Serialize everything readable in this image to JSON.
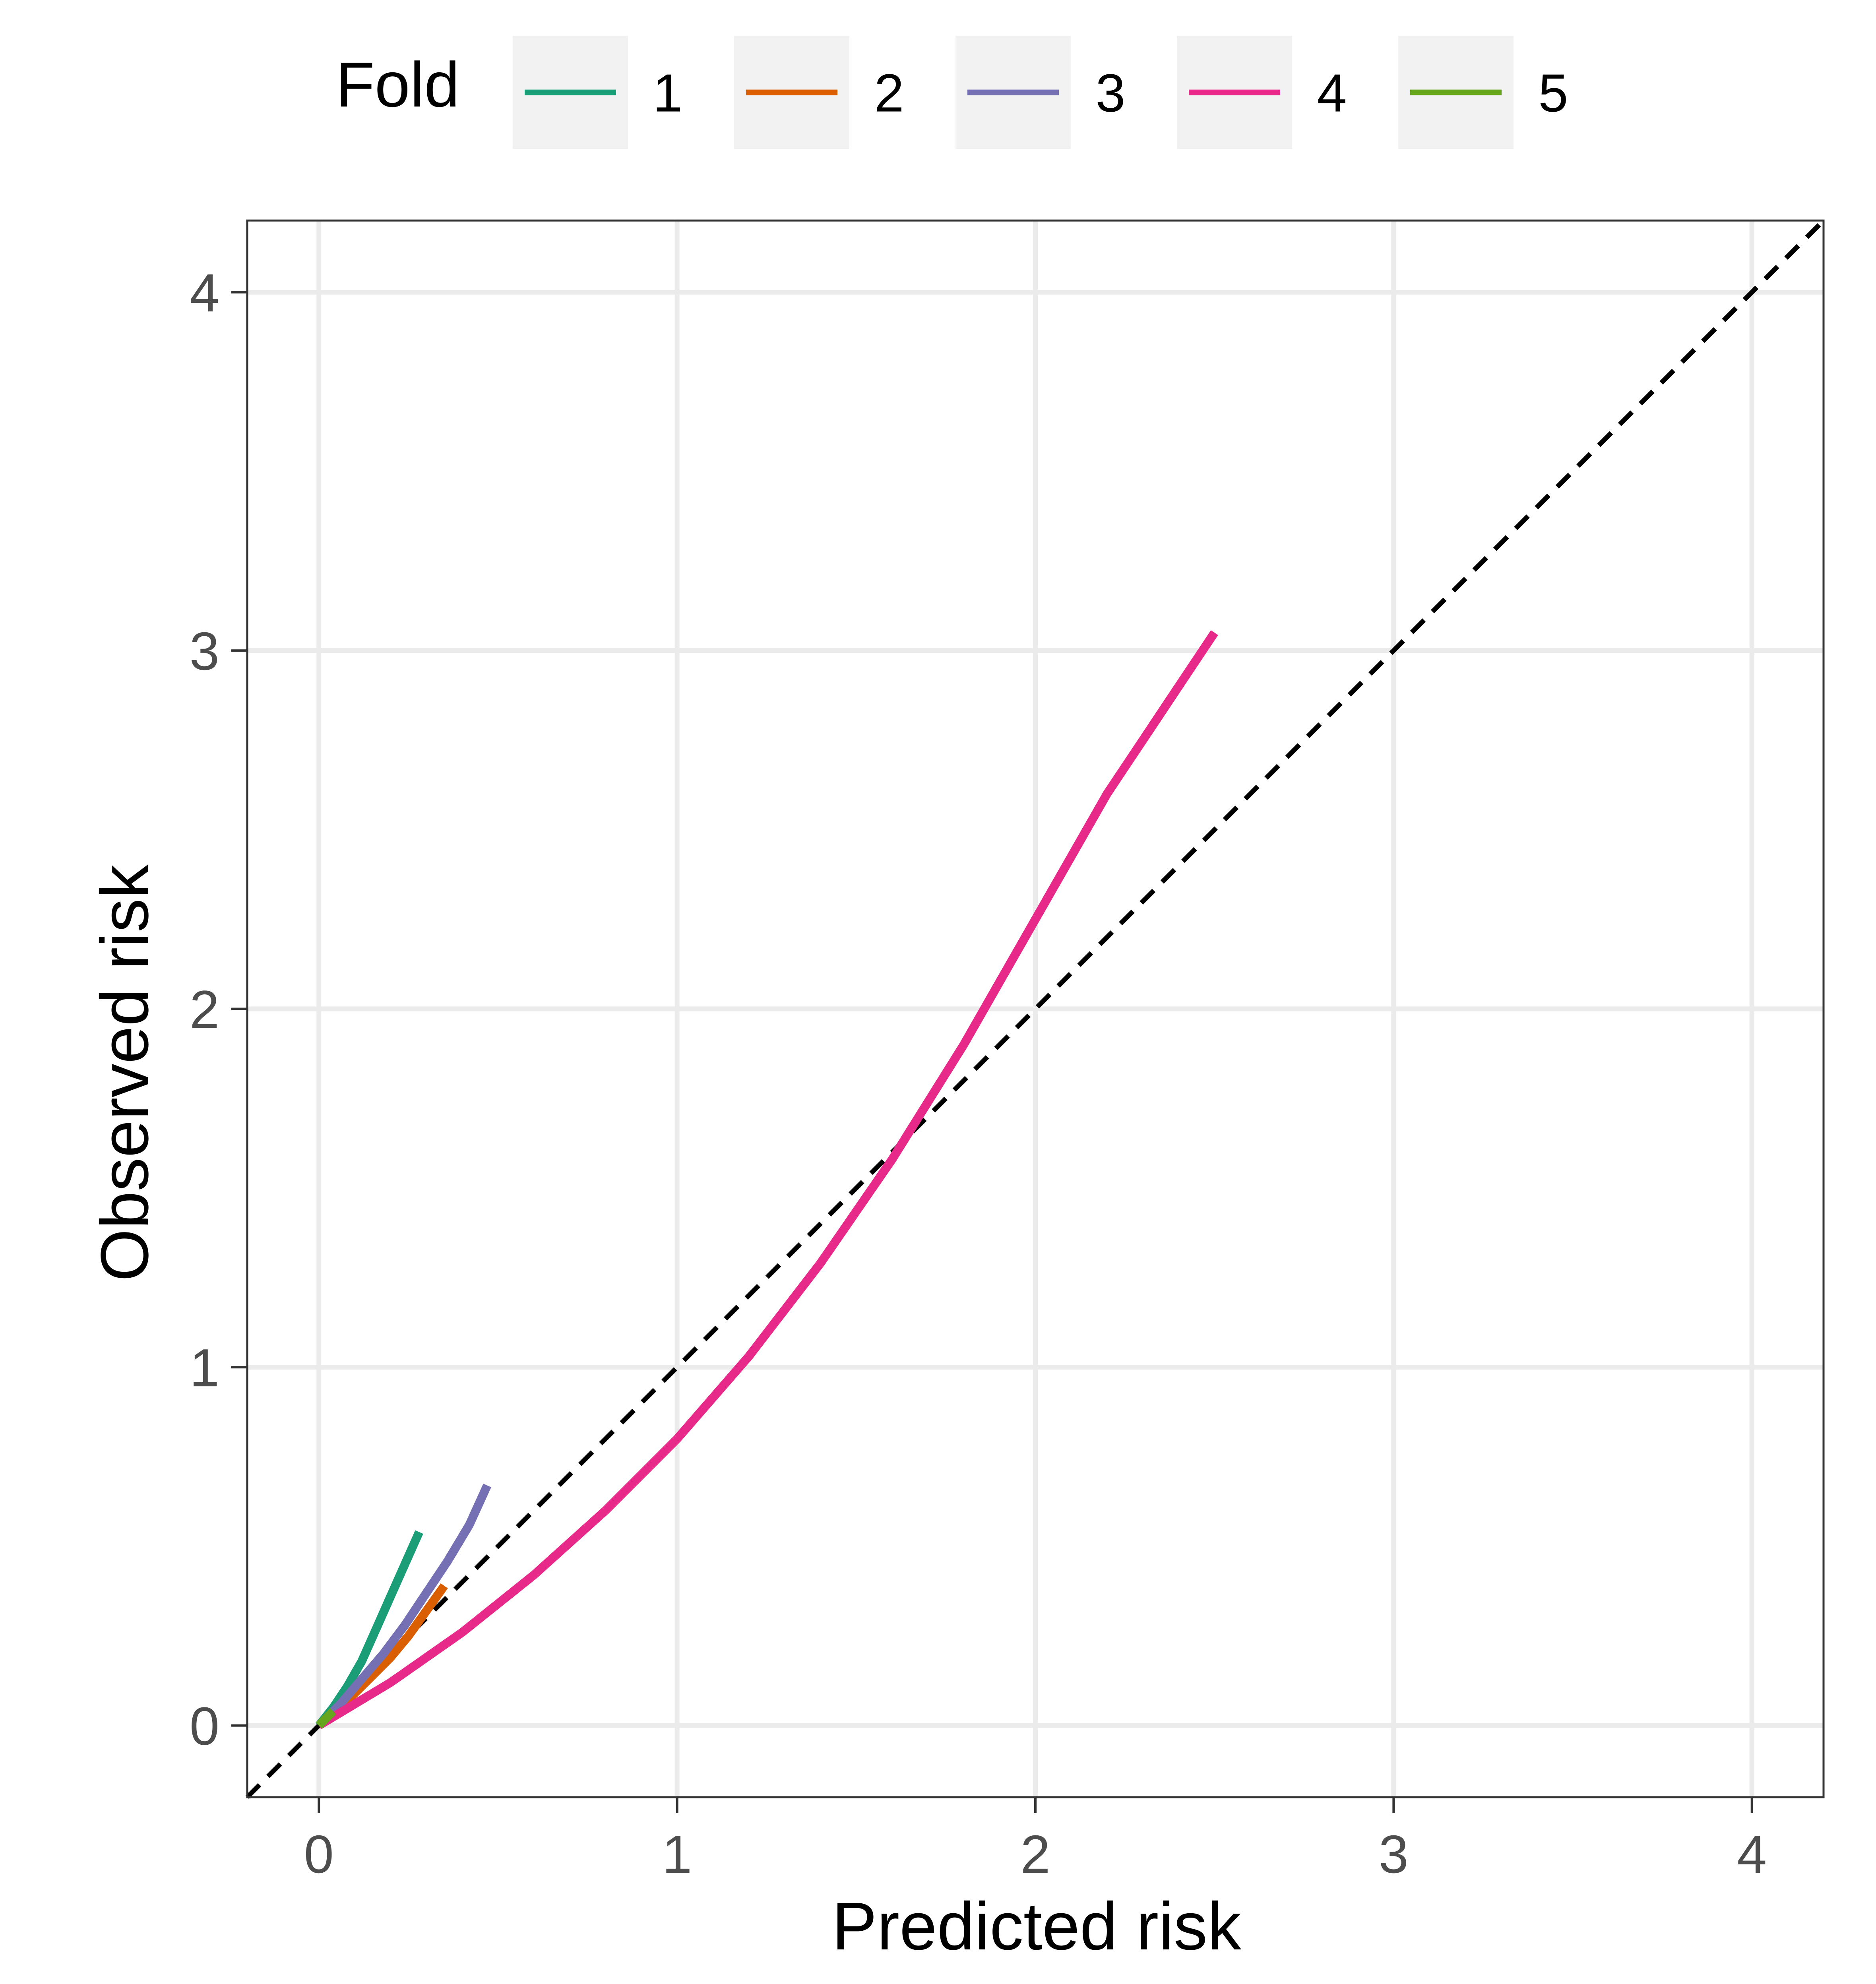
{
  "legend": {
    "title": "Fold",
    "position": "top",
    "entries": [
      {
        "label": "1",
        "color": "#1B9E77"
      },
      {
        "label": "2",
        "color": "#D95F02"
      },
      {
        "label": "3",
        "color": "#7570B3"
      },
      {
        "label": "4",
        "color": "#E7298A"
      },
      {
        "label": "5",
        "color": "#66A61E"
      }
    ]
  },
  "chart_data": {
    "type": "line",
    "title": "",
    "xlabel": "Predicted risk",
    "ylabel": "Observed risk",
    "xlim": [
      -0.2,
      4.2
    ],
    "ylim": [
      -0.2,
      4.2
    ],
    "x_ticks": [
      0,
      1,
      2,
      3,
      4
    ],
    "y_ticks": [
      0,
      1,
      2,
      3,
      4
    ],
    "x_tick_labels": [
      "0",
      "1",
      "2",
      "3",
      "4"
    ],
    "y_tick_labels": [
      "0",
      "1",
      "2",
      "3",
      "4"
    ],
    "grid": true,
    "reference_line": {
      "description": "identity y = x",
      "style": "dashed",
      "color": "#000000"
    },
    "series": [
      {
        "name": "1",
        "color": "#1B9E77",
        "x": [
          0,
          0.04,
          0.08,
          0.12,
          0.16,
          0.2,
          0.24,
          0.28
        ],
        "y": [
          0,
          0.05,
          0.11,
          0.18,
          0.27,
          0.36,
          0.45,
          0.54
        ]
      },
      {
        "name": "2",
        "color": "#D95F02",
        "x": [
          0,
          0.05,
          0.1,
          0.15,
          0.2,
          0.25,
          0.3,
          0.35
        ],
        "y": [
          0,
          0.04,
          0.09,
          0.14,
          0.19,
          0.25,
          0.32,
          0.39
        ]
      },
      {
        "name": "3",
        "color": "#7570B3",
        "x": [
          0,
          0.06,
          0.12,
          0.18,
          0.24,
          0.3,
          0.36,
          0.42,
          0.47
        ],
        "y": [
          0,
          0.06,
          0.13,
          0.2,
          0.28,
          0.37,
          0.46,
          0.56,
          0.67
        ]
      },
      {
        "name": "4",
        "color": "#E7298A",
        "x": [
          0,
          0.1,
          0.2,
          0.3,
          0.4,
          0.5,
          0.6,
          0.8,
          1.0,
          1.2,
          1.4,
          1.6,
          1.8,
          2.0,
          2.2,
          2.4,
          2.5
        ],
        "y": [
          0,
          0.06,
          0.12,
          0.19,
          0.26,
          0.34,
          0.42,
          0.6,
          0.8,
          1.03,
          1.29,
          1.58,
          1.9,
          2.25,
          2.6,
          2.9,
          3.05
        ]
      },
      {
        "name": "5",
        "color": "#66A61E",
        "x": [
          0,
          0.02,
          0.04
        ],
        "y": [
          0,
          0.02,
          0.04
        ]
      }
    ]
  }
}
